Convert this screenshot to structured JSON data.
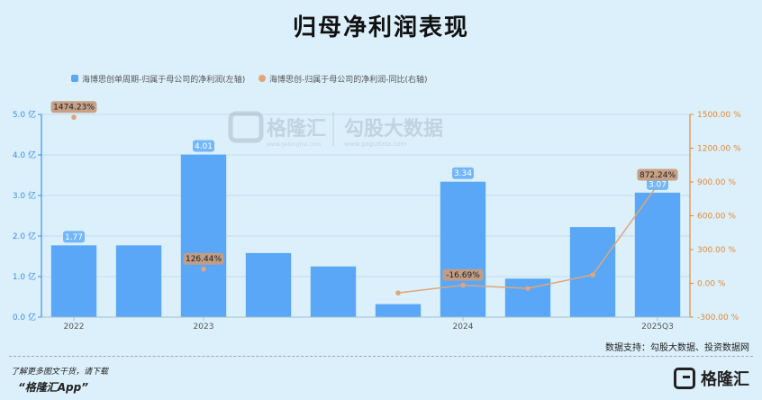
{
  "title": "归母净利润表现",
  "legend": {
    "bar": "海博思创单周期-归属于母公司的净利润(左轴)",
    "line": "海博思创-归属于母公司的净利润-同比(右轴)"
  },
  "watermark": {
    "brand_cn": "格隆汇",
    "brand_en": "www.gelonghui.com",
    "brand2_cn": "勾股大数据",
    "brand2_en": "www.gogudata.com"
  },
  "source": "数据支持：勾股大数据、投资数据网",
  "promo": {
    "line1": "了解更多图文干货，请下载",
    "line2": "“格隆汇App”"
  },
  "brand": "格隆汇",
  "colors": {
    "bar": "#5aa7f7",
    "line": "#e0a57a",
    "axis_left": "#3d8ef0",
    "axis_right": "#e08a3c"
  },
  "chart_data": {
    "type": "bar",
    "x_tick_labels": [
      "2022",
      "2023",
      "2024",
      "2025Q3"
    ],
    "left_axis": {
      "unit": "亿",
      "ticks": [
        "0.0 亿",
        "1.0 亿",
        "2.0 亿",
        "3.0 亿",
        "4.0 亿",
        "5.0 亿"
      ],
      "ylim": [
        0,
        5
      ]
    },
    "right_axis": {
      "ticks": [
        "-300.00 %",
        "0.00 %",
        "300.00 %",
        "600.00 %",
        "900.00 %",
        "1200.00 %",
        "1500.00 %"
      ],
      "ylim": [
        -300,
        1500
      ]
    },
    "series": [
      {
        "name": "海博思创单周期-归属于母公司的净利润(左轴)",
        "axis": "left",
        "values": [
          1.77,
          1.77,
          4.01,
          1.58,
          1.25,
          0.32,
          3.34,
          0.95,
          2.22,
          3.07
        ],
        "labels": [
          "1.77",
          null,
          "4.01",
          null,
          null,
          null,
          "3.34",
          null,
          null,
          "3.07"
        ]
      },
      {
        "name": "海博思创-归属于母公司的净利润-同比(右轴)",
        "axis": "right",
        "values": [
          1474.23,
          null,
          126.44,
          null,
          null,
          -85,
          -16.69,
          -45,
          75,
          872.24
        ],
        "labels": [
          "1474.23%",
          null,
          "126.44%",
          null,
          null,
          null,
          "-16.69%",
          null,
          null,
          "872.24%"
        ]
      }
    ]
  }
}
